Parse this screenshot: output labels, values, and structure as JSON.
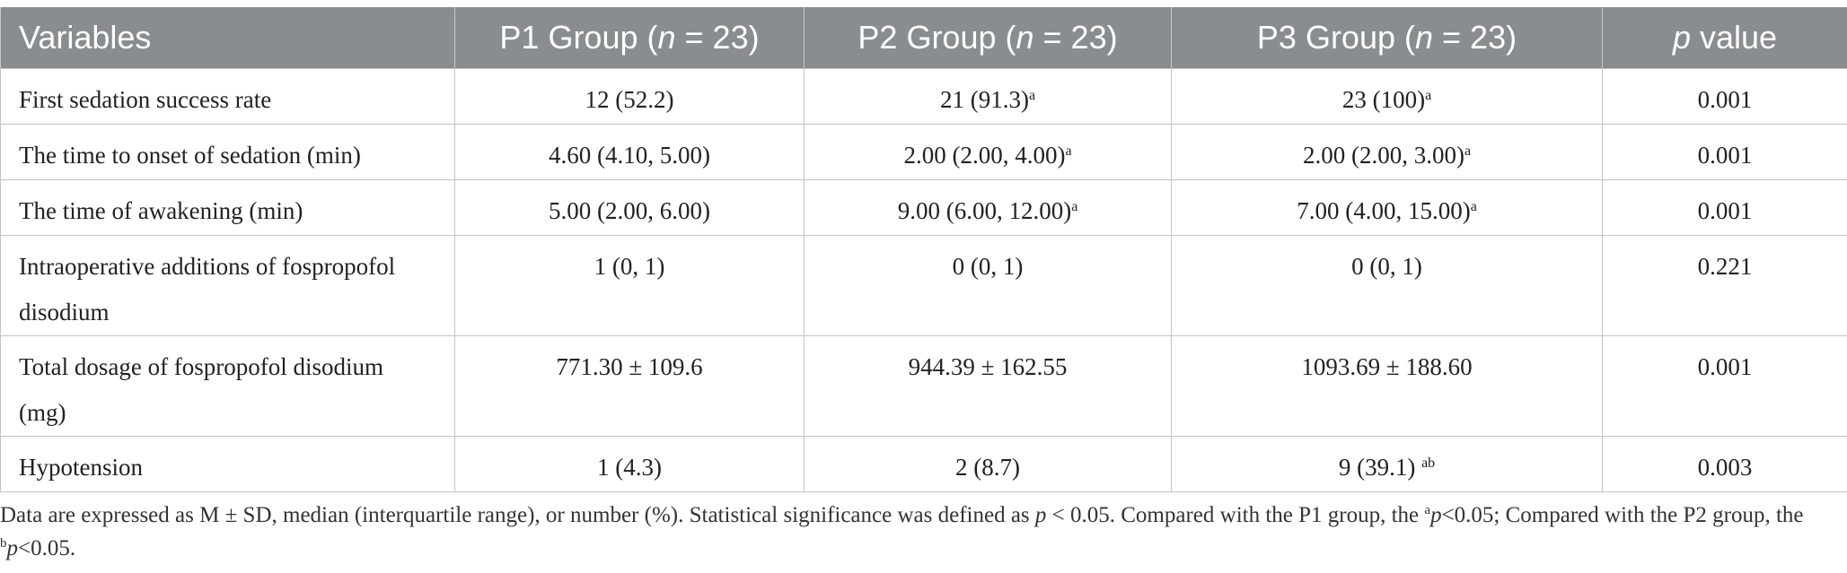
{
  "table": {
    "headers": [
      {
        "pre": "Variables",
        "italic": "",
        "post": ""
      },
      {
        "pre": "P1 Group (",
        "italic": "n",
        "post": " = 23)"
      },
      {
        "pre": "P2 Group (",
        "italic": "n",
        "post": " = 23)"
      },
      {
        "pre": "P3 Group (",
        "italic": "n",
        "post": " = 23)"
      },
      {
        "pre": "",
        "italic": "p",
        "post": " value"
      }
    ],
    "rows": [
      {
        "variable": "First sedation success rate",
        "p1": {
          "value": "12 (52.2)",
          "sup": ""
        },
        "p2": {
          "value": "21 (91.3)",
          "sup": "a"
        },
        "p3": {
          "value": "23 (100)",
          "sup": "a"
        },
        "p_value": "0.001"
      },
      {
        "variable": "The time to onset of sedation (min)",
        "p1": {
          "value": "4.60 (4.10, 5.00)",
          "sup": ""
        },
        "p2": {
          "value": "2.00 (2.00, 4.00)",
          "sup": "a"
        },
        "p3": {
          "value": "2.00 (2.00, 3.00)",
          "sup": "a"
        },
        "p_value": "0.001"
      },
      {
        "variable": "The time of awakening (min)",
        "p1": {
          "value": "5.00 (2.00, 6.00)",
          "sup": ""
        },
        "p2": {
          "value": "9.00 (6.00, 12.00)",
          "sup": "a"
        },
        "p3": {
          "value": "7.00 (4.00, 15.00)",
          "sup": "a"
        },
        "p_value": "0.001"
      },
      {
        "variable": "Intraoperative additions of fospropofol disodium",
        "p1": {
          "value": "1 (0, 1)",
          "sup": ""
        },
        "p2": {
          "value": "0 (0, 1)",
          "sup": ""
        },
        "p3": {
          "value": "0 (0, 1)",
          "sup": ""
        },
        "p_value": "0.221"
      },
      {
        "variable": "Total dosage of fospropofol disodium (mg)",
        "p1": {
          "value": "771.30 ± 109.6",
          "sup": ""
        },
        "p2": {
          "value": "944.39 ± 162.55",
          "sup": ""
        },
        "p3": {
          "value": "1093.69 ± 188.60",
          "sup": ""
        },
        "p_value": "0.001"
      },
      {
        "variable": "Hypotension",
        "p1": {
          "value": "1 (4.3)",
          "sup": ""
        },
        "p2": {
          "value": "2 (8.7)",
          "sup": ""
        },
        "p3": {
          "value": "9 (39.1) ",
          "sup": "ab"
        },
        "p_value": "0.003"
      }
    ]
  },
  "footnote": {
    "part1": "Data are expressed as M ± SD, median (interquartile range), or number (%). Statistical significance was defined as ",
    "p_symbol": "p",
    "part2": " < 0.05. Compared with the P1 group, the ",
    "sup_a": "a",
    "part3": "<0.05; Compared with the P2 group, the ",
    "sup_b": "b",
    "part4": "<0.05."
  }
}
